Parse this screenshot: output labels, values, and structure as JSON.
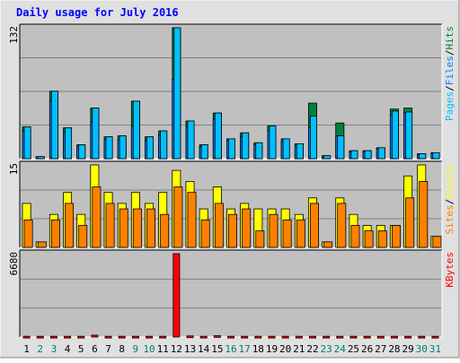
{
  "chart_data": {
    "type": "bar",
    "title": "Daily usage for July 2016",
    "days": [
      "1",
      "2",
      "3",
      "4",
      "5",
      "6",
      "7",
      "8",
      "9",
      "10",
      "11",
      "12",
      "13",
      "14",
      "15",
      "16",
      "17",
      "18",
      "19",
      "20",
      "21",
      "22",
      "23",
      "24",
      "25",
      "26",
      "27",
      "28",
      "29",
      "30",
      "31"
    ],
    "weekend_days": [
      2,
      3,
      9,
      10,
      16,
      17,
      23,
      24,
      30,
      31
    ],
    "colors": {
      "title": "#0000ff",
      "hits": "#008040",
      "files": "#0080ff",
      "pages": "#00c0ff",
      "visits": "#ffff00",
      "sites": "#ff8000",
      "kbytes": "#ff0000",
      "plot_bg": "#c0c0c0",
      "frame_bg": "#e0e0e0",
      "weekday_label": "#000000",
      "weekend_label": "#00805c"
    },
    "panels": [
      {
        "id": "hits",
        "axis_max_label": "132",
        "ymax": 132,
        "series": [
          {
            "name": "Hits",
            "values": [
              32,
              2,
              68,
              31,
              14,
              51,
              22,
              23,
              58,
              22,
              28,
              132,
              38,
              14,
              46,
              20,
              26,
              16,
              33,
              20,
              15,
              56,
              3,
              36,
              8,
              8,
              11,
              50,
              51,
              5,
              6
            ]
          },
          {
            "name": "Files",
            "values": [
              28,
              2,
              58,
              26,
              13,
              37,
              19,
              19,
              33,
              18,
              24,
              80,
              32,
              12,
              40,
              18,
              22,
              14,
              28,
              17,
              13,
              31,
              2,
              23,
              7,
              7,
              10,
              44,
              46,
              4,
              5
            ]
          },
          {
            "name": "Pages",
            "values": [
              32,
              2,
              68,
              31,
              14,
              51,
              22,
              23,
              58,
              22,
              28,
              132,
              38,
              14,
              46,
              20,
              26,
              16,
              33,
              20,
              15,
              43,
              3,
              23,
              8,
              8,
              11,
              48,
              47,
              5,
              6
            ]
          }
        ],
        "legend": [
          {
            "key": "Pages",
            "text": "Pages"
          },
          {
            "key": "Files",
            "text": "Files"
          },
          {
            "key": "Hits",
            "text": "Hits"
          }
        ],
        "legend_sep": "/"
      },
      {
        "id": "visits",
        "axis_max_label": "15",
        "ymax": 15,
        "series": [
          {
            "name": "Visits",
            "values": [
              8,
              1,
              6,
              10,
              6,
              15,
              10,
              8,
              10,
              8,
              10,
              14,
              12,
              7,
              11,
              7,
              8,
              7,
              7,
              7,
              6,
              9,
              1,
              9,
              6,
              4,
              4,
              4,
              13,
              15,
              2
            ]
          },
          {
            "name": "Sites",
            "values": [
              5,
              1,
              5,
              8,
              4,
              11,
              8,
              7,
              7,
              7,
              6,
              11,
              10,
              5,
              8,
              6,
              7,
              3,
              6,
              5,
              5,
              8,
              1,
              8,
              4,
              3,
              3,
              4,
              9,
              12,
              2
            ]
          }
        ],
        "legend": [
          {
            "key": "Sites",
            "text": "Sites"
          },
          {
            "key": "Visits",
            "text": "Visits"
          }
        ],
        "legend_sep": "/"
      },
      {
        "id": "kbytes",
        "axis_max_label": "6680",
        "ymax": 6680,
        "series": [
          {
            "name": "KBytes",
            "values": [
              60,
              60,
              60,
              60,
              60,
              150,
              60,
              60,
              60,
              60,
              60,
              6680,
              90,
              60,
              110,
              60,
              60,
              60,
              60,
              60,
              60,
              60,
              60,
              60,
              60,
              60,
              60,
              60,
              60,
              60,
              60
            ]
          }
        ],
        "legend": [
          {
            "key": "KBytes",
            "text": "KBytes"
          }
        ],
        "legend_sep": ""
      }
    ]
  }
}
